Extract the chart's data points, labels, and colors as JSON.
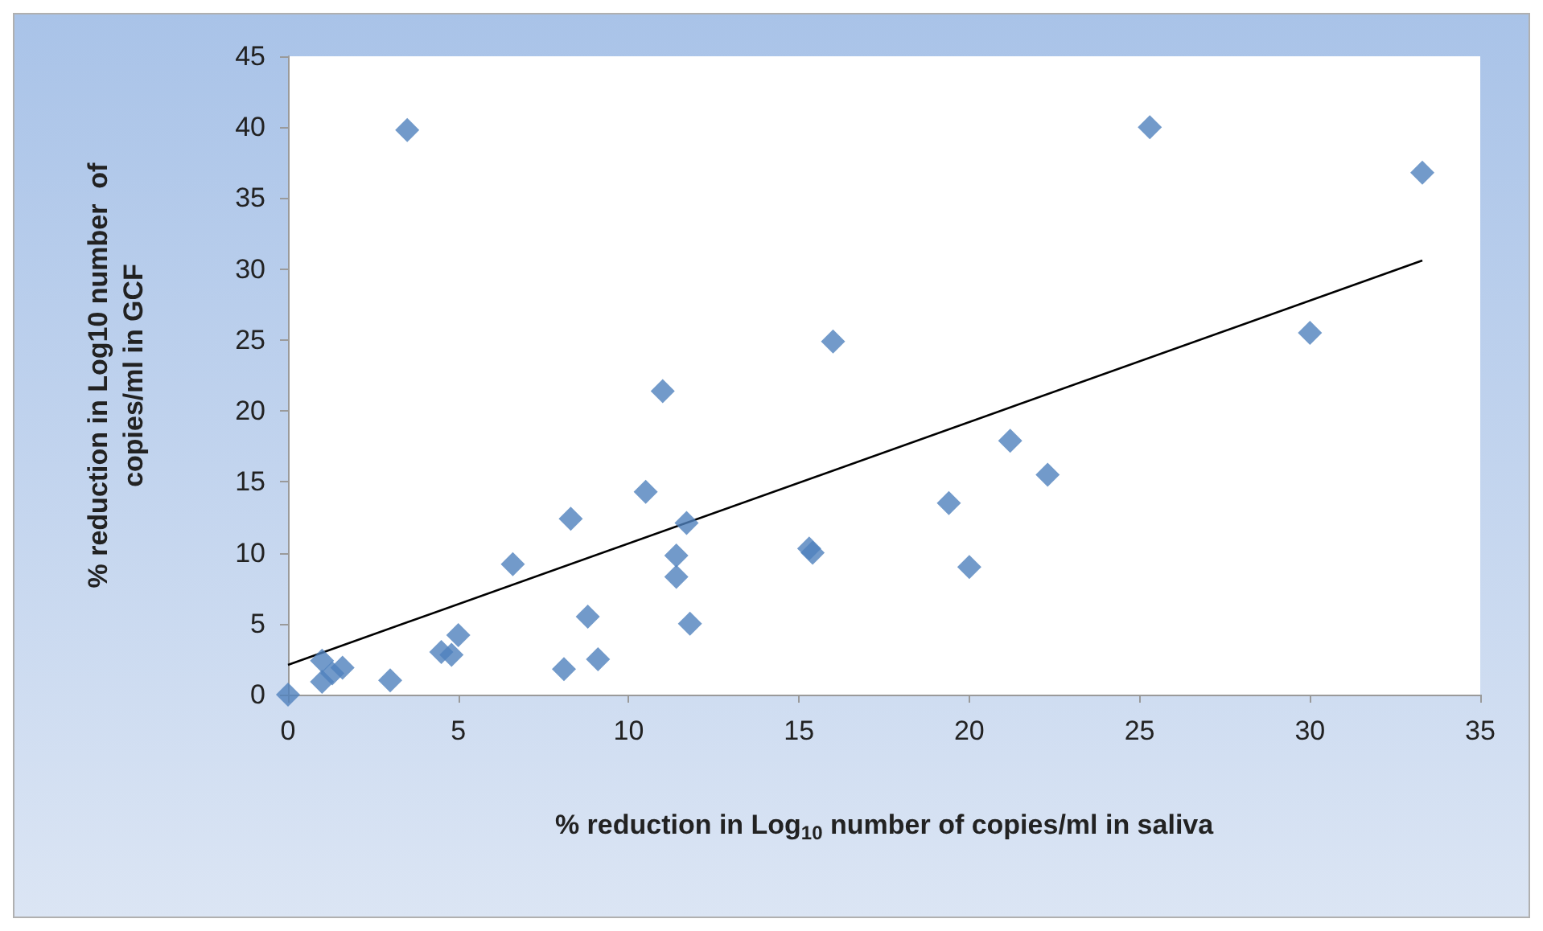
{
  "chart_data": {
    "type": "scatter",
    "xlabel": "% reduction in Log$_{10}$ number of copies/ml in saliva",
    "ylabel": "% reduction in Log10 number  of\ncopies/ml in GCF",
    "xlim": [
      0,
      35
    ],
    "xticks": [
      0,
      5,
      10,
      15,
      20,
      25,
      30,
      35
    ],
    "ylim": [
      0,
      45
    ],
    "yticks": [
      0,
      5,
      10,
      15,
      20,
      25,
      30,
      35,
      40,
      45
    ],
    "grid": false,
    "marker": "diamond",
    "series": [
      {
        "color": "#4f81bd",
        "x": [
          0,
          1.0,
          1.0,
          1.3,
          1.6,
          3.0,
          3.5,
          4.5,
          4.8,
          5.0,
          6.6,
          8.1,
          8.3,
          8.8,
          9.1,
          10.5,
          11.0,
          11.4,
          11.4,
          11.7,
          11.8,
          15.3,
          15.4,
          16.0,
          19.4,
          20.0,
          21.2,
          22.3,
          25.3,
          30.0,
          33.3
        ],
        "values": [
          0,
          2.4,
          0.9,
          1.5,
          1.9,
          1.0,
          39.8,
          3.0,
          2.8,
          4.2,
          9.2,
          1.8,
          12.4,
          5.5,
          2.5,
          14.3,
          21.4,
          9.8,
          8.3,
          12.1,
          5.0,
          10.3,
          10.0,
          24.9,
          13.5,
          9.0,
          17.9,
          15.5,
          40.0,
          25.5,
          36.8
        ]
      },
      {
        "type": "line",
        "color": "#000000",
        "marker": "none",
        "line_style": "solid",
        "x": [
          0,
          33.3
        ],
        "values": [
          2.1,
          30.6
        ]
      }
    ]
  }
}
